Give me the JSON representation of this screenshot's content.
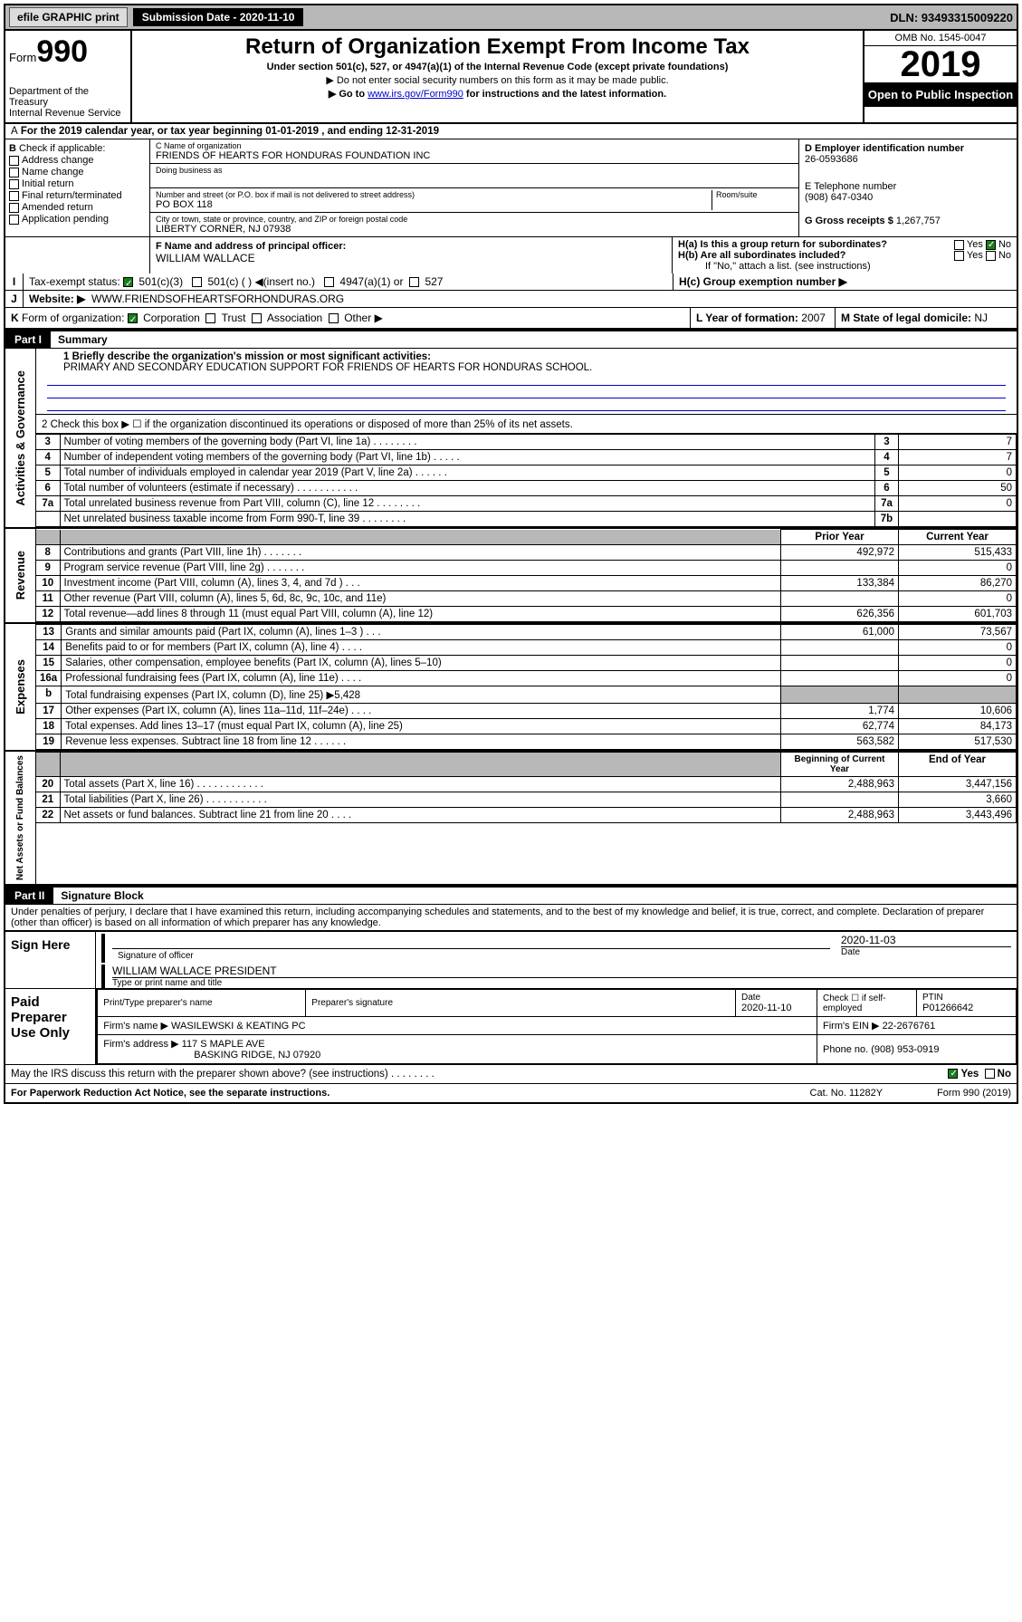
{
  "topbar": {
    "efile": "efile GRAPHIC print",
    "subdate_label": "Submission Date - 2020-11-10",
    "dln": "DLN: 93493315009220"
  },
  "header": {
    "form_label": "Form",
    "form_num": "990",
    "dept": "Department of the Treasury\nInternal Revenue Service",
    "title": "Return of Organization Exempt From Income Tax",
    "subtitle": "Under section 501(c), 527, or 4947(a)(1) of the Internal Revenue Code (except private foundations)",
    "note1": "▶ Do not enter social security numbers on this form as it may be made public.",
    "note2_pre": "▶ Go to ",
    "note2_link": "www.irs.gov/Form990",
    "note2_post": " for instructions and the latest information.",
    "omb": "OMB No. 1545-0047",
    "year": "2019",
    "open": "Open to Public Inspection"
  },
  "A": {
    "text": "For the 2019 calendar year, or tax year beginning 01-01-2019   , and ending 12-31-2019"
  },
  "B": {
    "label": "Check if applicable:",
    "opts": [
      "Address change",
      "Name change",
      "Initial return",
      "Final return/terminated",
      "Amended return",
      "Application pending"
    ]
  },
  "C": {
    "name_lbl": "C Name of organization",
    "name": "FRIENDS OF HEARTS FOR HONDURAS FOUNDATION INC",
    "dba_lbl": "Doing business as",
    "dba": "",
    "addr_lbl": "Number and street (or P.O. box if mail is not delivered to street address)",
    "room_lbl": "Room/suite",
    "addr": "PO BOX 118",
    "city_lbl": "City or town, state or province, country, and ZIP or foreign postal code",
    "city": "LIBERTY CORNER, NJ  07938"
  },
  "D": {
    "lbl": "D Employer identification number",
    "val": "26-0593686"
  },
  "E": {
    "lbl": "E Telephone number",
    "val": "(908) 647-0340"
  },
  "G": {
    "lbl": "G Gross receipts $",
    "val": "1,267,757"
  },
  "F": {
    "lbl": "F  Name and address of principal officer:",
    "val": "WILLIAM WALLACE"
  },
  "H": {
    "a": "H(a)  Is this a group return for subordinates?",
    "a_yes": "Yes",
    "a_no": "No",
    "b": "H(b)  Are all subordinates included?",
    "b_yes": "Yes",
    "b_no": "No",
    "b_note": "If \"No,\" attach a list. (see instructions)",
    "c": "H(c)  Group exemption number ▶"
  },
  "I": {
    "lbl": "Tax-exempt status:",
    "o1": "501(c)(3)",
    "o2": "501(c) (  ) ◀(insert no.)",
    "o3": "4947(a)(1) or",
    "o4": "527"
  },
  "J": {
    "lbl": "Website: ▶",
    "val": "WWW.FRIENDSOFHEARTSFORHONDURAS.ORG"
  },
  "K": {
    "lbl": "Form of organization:",
    "o1": "Corporation",
    "o2": "Trust",
    "o3": "Association",
    "o4": "Other ▶"
  },
  "L": {
    "lbl": "L Year of formation:",
    "val": "2007"
  },
  "M": {
    "lbl": "M State of legal domicile:",
    "val": "NJ"
  },
  "part1": {
    "bar": "Part I",
    "title": "Summary"
  },
  "summary": {
    "s1_lbl": "1  Briefly describe the organization's mission or most significant activities:",
    "s1_val": "PRIMARY AND SECONDARY EDUCATION SUPPORT FOR FRIENDS OF HEARTS FOR HONDURAS SCHOOL.",
    "s2": "2   Check this box ▶ ☐  if the organization discontinued its operations or disposed of more than 25% of its net assets.",
    "rows_gov": [
      {
        "n": "3",
        "t": "Number of voting members of the governing body (Part VI, line 1a)  .    .    .    .    .    .    .    .",
        "box": "3",
        "v": "7"
      },
      {
        "n": "4",
        "t": "Number of independent voting members of the governing body (Part VI, line 1b)  .    .    .    .    .",
        "box": "4",
        "v": "7"
      },
      {
        "n": "5",
        "t": "Total number of individuals employed in calendar year 2019 (Part V, line 2a)  .    .    .    .    .    .",
        "box": "5",
        "v": "0"
      },
      {
        "n": "6",
        "t": "Total number of volunteers (estimate if necessary)  .    .    .    .    .    .    .    .    .    .    .",
        "box": "6",
        "v": "50"
      },
      {
        "n": "7a",
        "t": "Total unrelated business revenue from Part VIII, column (C), line 12  .    .    .    .    .    .    .    .",
        "box": "7a",
        "v": "0"
      },
      {
        "n": "",
        "t": "Net unrelated business taxable income from Form 990-T, line 39  .    .    .    .    .    .    .    .",
        "box": "7b",
        "v": ""
      }
    ],
    "hdr_prior": "Prior Year",
    "hdr_curr": "Current Year",
    "rev": [
      {
        "n": "8",
        "t": "Contributions and grants (Part VIII, line 1h)  .    .    .    .    .    .    .",
        "p": "492,972",
        "c": "515,433"
      },
      {
        "n": "9",
        "t": "Program service revenue (Part VIII, line 2g)  .    .    .    .    .    .    .",
        "p": "",
        "c": "0"
      },
      {
        "n": "10",
        "t": "Investment income (Part VIII, column (A), lines 3, 4, and 7d )  .    .    .",
        "p": "133,384",
        "c": "86,270"
      },
      {
        "n": "11",
        "t": "Other revenue (Part VIII, column (A), lines 5, 6d, 8c, 9c, 10c, and 11e)",
        "p": "",
        "c": "0"
      },
      {
        "n": "12",
        "t": "Total revenue—add lines 8 through 11 (must equal Part VIII, column (A), line 12)",
        "p": "626,356",
        "c": "601,703"
      }
    ],
    "exp": [
      {
        "n": "13",
        "t": "Grants and similar amounts paid (Part IX, column (A), lines 1–3 )  .    .    .",
        "p": "61,000",
        "c": "73,567"
      },
      {
        "n": "14",
        "t": "Benefits paid to or for members (Part IX, column (A), line 4)  .    .    .    .",
        "p": "",
        "c": "0"
      },
      {
        "n": "15",
        "t": "Salaries, other compensation, employee benefits (Part IX, column (A), lines 5–10)",
        "p": "",
        "c": "0"
      },
      {
        "n": "16a",
        "t": "Professional fundraising fees (Part IX, column (A), line 11e)  .    .    .    .",
        "p": "",
        "c": "0"
      },
      {
        "n": "b",
        "t": "Total fundraising expenses (Part IX, column (D), line 25) ▶5,428",
        "p": "GRAY",
        "c": "GRAY"
      },
      {
        "n": "17",
        "t": "Other expenses (Part IX, column (A), lines 11a–11d, 11f–24e)  .    .    .    .",
        "p": "1,774",
        "c": "10,606"
      },
      {
        "n": "18",
        "t": "Total expenses. Add lines 13–17 (must equal Part IX, column (A), line 25)",
        "p": "62,774",
        "c": "84,173"
      },
      {
        "n": "19",
        "t": "Revenue less expenses. Subtract line 18 from line 12  .    .    .    .    .    .",
        "p": "563,582",
        "c": "517,530"
      }
    ],
    "hdr_beg": "Beginning of Current Year",
    "hdr_end": "End of Year",
    "net": [
      {
        "n": "20",
        "t": "Total assets (Part X, line 16)  .    .    .    .    .    .    .    .    .    .    .    .",
        "p": "2,488,963",
        "c": "3,447,156"
      },
      {
        "n": "21",
        "t": "Total liabilities (Part X, line 26)  .    .    .    .    .    .    .    .    .    .    .",
        "p": "",
        "c": "3,660"
      },
      {
        "n": "22",
        "t": "Net assets or fund balances. Subtract line 21 from line 20  .    .    .    .",
        "p": "2,488,963",
        "c": "3,443,496"
      }
    ],
    "vlabels": {
      "gov": "Activities & Governance",
      "rev": "Revenue",
      "exp": "Expenses",
      "net": "Net Assets or Fund Balances"
    }
  },
  "part2": {
    "bar": "Part II",
    "title": "Signature Block",
    "perjury": "Under penalties of perjury, I declare that I have examined this return, including accompanying schedules and statements, and to the best of my knowledge and belief, it is true, correct, and complete. Declaration of preparer (other than officer) is based on all information of which preparer has any knowledge."
  },
  "sign": {
    "here": "Sign Here",
    "sig_lbl": "Signature of officer",
    "date": "2020-11-03",
    "date_lbl": "Date",
    "name": "WILLIAM WALLACE  PRESIDENT",
    "name_lbl": "Type or print name and title"
  },
  "paid": {
    "title": "Paid Preparer Use Only",
    "h1": "Print/Type preparer's name",
    "h2": "Preparer's signature",
    "h3": "Date",
    "h3v": "2020-11-10",
    "h4": "Check ☐ if self-employed",
    "h5": "PTIN",
    "h5v": "P01266642",
    "firm_lbl": "Firm's name    ▶",
    "firm": "WASILEWSKI & KEATING PC",
    "ein_lbl": "Firm's EIN ▶",
    "ein": "22-2676761",
    "addr_lbl": "Firm's address ▶",
    "addr": "117 S MAPLE AVE",
    "addr2": "BASKING RIDGE, NJ  07920",
    "phone_lbl": "Phone no.",
    "phone": "(908) 953-0919"
  },
  "discuss": {
    "q": "May the IRS discuss this return with the preparer shown above? (see instructions)   .    .    .    .    .    .    .    .",
    "yes": "Yes",
    "no": "No"
  },
  "footer": {
    "l": "For Paperwork Reduction Act Notice, see the separate instructions.",
    "m": "Cat. No. 11282Y",
    "r": "Form 990 (2019)"
  }
}
